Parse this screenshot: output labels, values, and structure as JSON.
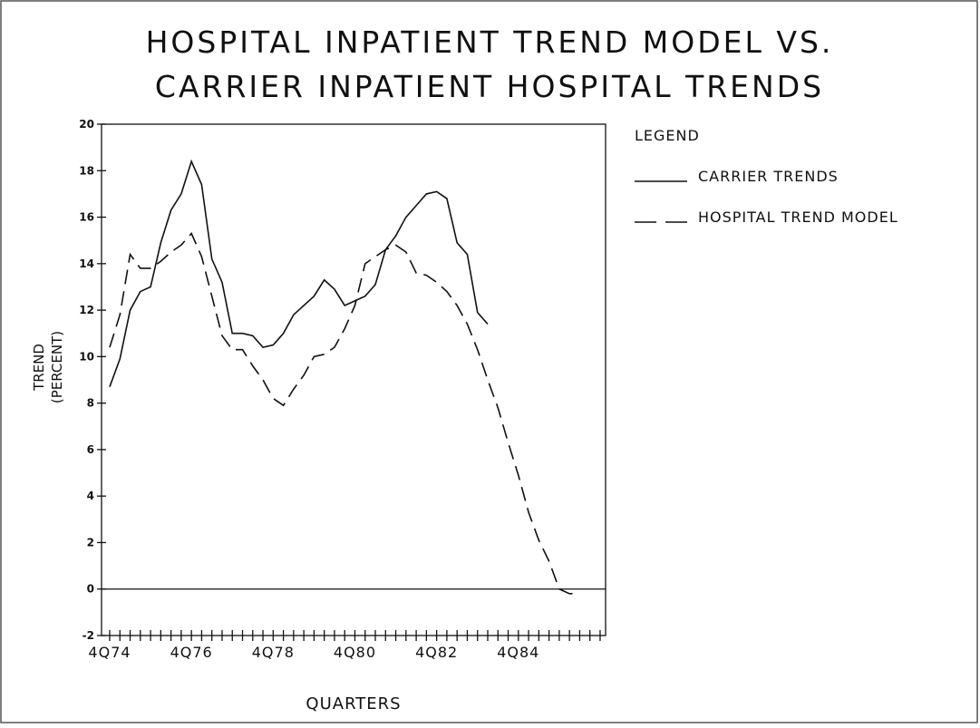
{
  "chart_data": {
    "type": "line",
    "title": [
      "HOSPITAL INPATIENT TREND MODEL VS.",
      "CARRIER INPATIENT HOSPITAL TRENDS"
    ],
    "xlabel": "QUARTERS",
    "ylabel": [
      "TREND",
      "(PERCENT)"
    ],
    "legend_title": "LEGEND",
    "categories": [
      "4Q74",
      null,
      null,
      null,
      null,
      null,
      null,
      null,
      "4Q76",
      null,
      null,
      null,
      null,
      null,
      null,
      null,
      "4Q78",
      null,
      null,
      null,
      null,
      null,
      null,
      null,
      "4Q80",
      null,
      null,
      null,
      null,
      null,
      null,
      null,
      "4Q82",
      null,
      null,
      null,
      null,
      null,
      null,
      null,
      "4Q84",
      null,
      null,
      null,
      null,
      null,
      null,
      null,
      null
    ],
    "series": [
      {
        "name": "CARRIER TRENDS",
        "color": "#111111",
        "style": "solid",
        "values": [
          8.7,
          9.9,
          12.0,
          12.8,
          13.0,
          14.9,
          16.3,
          17.0,
          18.4,
          17.4,
          14.2,
          13.2,
          11.0,
          11.0,
          10.9,
          10.4,
          10.5,
          11.0,
          11.8,
          12.2,
          12.6,
          13.3,
          12.9,
          12.2,
          12.4,
          12.6,
          13.1,
          14.6,
          15.2,
          16.0,
          16.5,
          17.0,
          17.1,
          16.8,
          14.9,
          14.4,
          11.9,
          11.4,
          null,
          null,
          null,
          null,
          null,
          null,
          null,
          null,
          null,
          null,
          null
        ]
      },
      {
        "name": "HOSPITAL TREND MODEL",
        "color": "#111111",
        "style": "dashed",
        "values": [
          10.4,
          11.8,
          14.4,
          13.8,
          13.8,
          14.1,
          14.5,
          14.8,
          15.3,
          14.3,
          12.6,
          10.9,
          10.3,
          10.3,
          9.6,
          9.0,
          8.2,
          7.9,
          8.6,
          9.2,
          10.0,
          10.1,
          10.4,
          11.2,
          12.2,
          14.0,
          14.3,
          14.6,
          14.8,
          14.5,
          13.6,
          13.5,
          13.2,
          12.8,
          12.2,
          11.4,
          10.3,
          9.0,
          7.8,
          6.3,
          4.9,
          3.3,
          2.1,
          1.2,
          0.0,
          -0.2,
          -0.2,
          null,
          null
        ]
      }
    ],
    "ylim": [
      -2,
      20
    ],
    "yticks": [
      -2,
      0,
      2,
      4,
      6,
      8,
      10,
      12,
      14,
      16,
      18,
      20
    ]
  }
}
